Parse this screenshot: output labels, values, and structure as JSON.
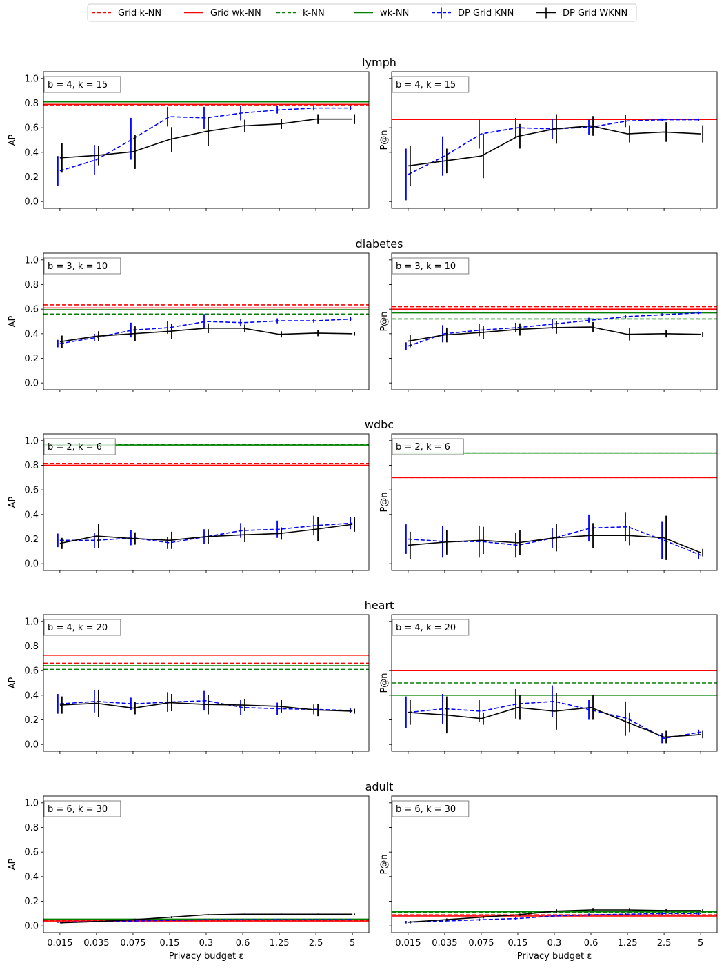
{
  "chart_data": {
    "type": "line",
    "xlabel": "Privacy budget ε",
    "x_categories": [
      "0.015",
      "0.035",
      "0.075",
      "0.15",
      "0.3",
      "0.6",
      "1.25",
      "2.5",
      "5"
    ],
    "y_ticks": [
      "0.0",
      "0.2",
      "0.4",
      "0.6",
      "0.8",
      "1.0"
    ],
    "ylim": [
      0,
      1
    ],
    "colors": {
      "red": "#ff0000",
      "green": "#008000",
      "blue": "#0000ff",
      "black": "#000000",
      "legend_border": "#cccccc",
      "box_border": "#808080"
    },
    "legend": [
      {
        "label": "Grid k-NN",
        "color": "#ff0000",
        "style": "dashed",
        "errbar": false
      },
      {
        "label": "Grid wk-NN",
        "color": "#ff0000",
        "style": "solid",
        "errbar": false
      },
      {
        "label": "k-NN",
        "color": "#008000",
        "style": "dashed",
        "errbar": false
      },
      {
        "label": "wk-NN",
        "color": "#008000",
        "style": "solid",
        "errbar": false
      },
      {
        "label": "DP Grid KNN",
        "color": "#0000ff",
        "style": "dashed",
        "errbar": true
      },
      {
        "label": "DP Grid WKNN",
        "color": "#000000",
        "style": "solid",
        "errbar": true
      }
    ],
    "rows": [
      {
        "title": "lymph",
        "annotation": "b = 4, k = 15",
        "panels": [
          {
            "ylabel": "AP",
            "hlines": {
              "grid_knn": 0.78,
              "grid_wknn": 0.79,
              "knn": 0.79,
              "wknn": 0.81
            },
            "dp_knn": {
              "values": [
                0.25,
                0.34,
                0.51,
                0.69,
                0.68,
                0.72,
                0.745,
                0.76,
                0.76
              ],
              "errors": [
                0.12,
                0.12,
                0.17,
                0.08,
                0.09,
                0.06,
                0.03,
                0.02,
                0.015
              ]
            },
            "dp_wknn": {
              "values": [
                0.355,
                0.375,
                0.405,
                0.505,
                0.57,
                0.615,
                0.63,
                0.67,
                0.67
              ],
              "errors": [
                0.12,
                0.08,
                0.14,
                0.1,
                0.12,
                0.05,
                0.04,
                0.04,
                0.04
              ]
            }
          },
          {
            "ylabel": "P@n",
            "hlines": {
              "grid_knn": 0.667,
              "grid_wknn": 0.667,
              "knn": 0.667,
              "wknn": 0.667
            },
            "dp_knn": {
              "values": [
                0.22,
                0.37,
                0.55,
                0.6,
                0.59,
                0.605,
                0.655,
                0.665,
                0.665
              ],
              "errors": [
                0.21,
                0.16,
                0.12,
                0.08,
                0.08,
                0.06,
                0.05,
                0.01,
                0.01
              ]
            },
            "dp_wknn": {
              "values": [
                0.29,
                0.33,
                0.37,
                0.53,
                0.59,
                0.615,
                0.55,
                0.565,
                0.55
              ],
              "errors": [
                0.16,
                0.1,
                0.18,
                0.1,
                0.12,
                0.08,
                0.07,
                0.08,
                0.07
              ]
            }
          }
        ]
      },
      {
        "title": "diabetes",
        "annotation": "b = 3, k = 10",
        "panels": [
          {
            "ylabel": "AP",
            "hlines": {
              "grid_knn": 0.635,
              "grid_wknn": 0.61,
              "knn": 0.56,
              "wknn": 0.595
            },
            "dp_knn": {
              "values": [
                0.32,
                0.37,
                0.43,
                0.45,
                0.5,
                0.49,
                0.505,
                0.505,
                0.52
              ],
              "errors": [
                0.03,
                0.03,
                0.06,
                0.05,
                0.06,
                0.03,
                0.02,
                0.015,
                0.02
              ]
            },
            "dp_wknn": {
              "values": [
                0.335,
                0.38,
                0.4,
                0.42,
                0.445,
                0.445,
                0.395,
                0.405,
                0.4
              ],
              "errors": [
                0.05,
                0.04,
                0.06,
                0.06,
                0.04,
                0.03,
                0.025,
                0.025,
                0.015
              ]
            }
          },
          {
            "ylabel": "P@n",
            "hlines": {
              "grid_knn": 0.62,
              "grid_wknn": 0.6,
              "knn": 0.52,
              "wknn": 0.57
            },
            "dp_knn": {
              "values": [
                0.3,
                0.4,
                0.43,
                0.45,
                0.48,
                0.51,
                0.54,
                0.555,
                0.57
              ],
              "errors": [
                0.03,
                0.07,
                0.05,
                0.04,
                0.04,
                0.02,
                0.015,
                0.01,
                0.01
              ]
            },
            "dp_wknn": {
              "values": [
                0.34,
                0.39,
                0.41,
                0.435,
                0.45,
                0.455,
                0.395,
                0.4,
                0.395
              ],
              "errors": [
                0.05,
                0.06,
                0.05,
                0.05,
                0.05,
                0.04,
                0.05,
                0.03,
                0.02
              ]
            }
          }
        ]
      },
      {
        "title": "wdbc",
        "annotation": "b = 2, k = 6",
        "panels": [
          {
            "ylabel": "AP",
            "hlines": {
              "grid_knn": 0.815,
              "grid_wknn": 0.8,
              "knn": 0.97,
              "wknn": 0.965
            },
            "dp_knn": {
              "values": [
                0.19,
                0.19,
                0.21,
                0.17,
                0.22,
                0.27,
                0.28,
                0.31,
                0.33
              ],
              "errors": [
                0.055,
                0.06,
                0.06,
                0.05,
                0.06,
                0.06,
                0.07,
                0.08,
                0.05
              ]
            },
            "dp_wknn": {
              "values": [
                0.165,
                0.225,
                0.205,
                0.19,
                0.22,
                0.235,
                0.245,
                0.28,
                0.32
              ],
              "errors": [
                0.045,
                0.1,
                0.05,
                0.07,
                0.06,
                0.06,
                0.05,
                0.1,
                0.06
              ]
            }
          },
          {
            "ylabel": "P@n",
            "hlines": {
              "grid_knn": 0.7,
              "grid_wknn": 0.7,
              "knn": 0.9,
              "wknn": 0.9
            },
            "dp_knn": {
              "values": [
                0.2,
                0.18,
                0.18,
                0.15,
                0.21,
                0.29,
                0.3,
                0.19,
                0.07
              ],
              "errors": [
                0.12,
                0.13,
                0.13,
                0.1,
                0.08,
                0.11,
                0.12,
                0.15,
                0.03
              ]
            },
            "dp_wknn": {
              "values": [
                0.15,
                0.175,
                0.19,
                0.17,
                0.21,
                0.23,
                0.23,
                0.21,
                0.09
              ],
              "errors": [
                0.11,
                0.1,
                0.11,
                0.1,
                0.11,
                0.1,
                0.08,
                0.18,
                0.03
              ]
            }
          }
        ]
      },
      {
        "title": "heart",
        "annotation": "b = 4, k = 20",
        "panels": [
          {
            "ylabel": "AP",
            "hlines": {
              "grid_knn": 0.66,
              "grid_wknn": 0.725,
              "knn": 0.61,
              "wknn": 0.64
            },
            "dp_knn": {
              "values": [
                0.33,
                0.35,
                0.33,
                0.345,
                0.355,
                0.3,
                0.29,
                0.285,
                0.275
              ],
              "errors": [
                0.08,
                0.09,
                0.05,
                0.08,
                0.08,
                0.06,
                0.05,
                0.04,
                0.02
              ]
            },
            "dp_wknn": {
              "values": [
                0.32,
                0.335,
                0.295,
                0.34,
                0.325,
                0.32,
                0.31,
                0.28,
                0.27
              ],
              "errors": [
                0.07,
                0.11,
                0.05,
                0.07,
                0.08,
                0.05,
                0.05,
                0.05,
                0.02
              ]
            }
          },
          {
            "ylabel": "P@n",
            "hlines": {
              "grid_knn": 0.6,
              "grid_wknn": 0.6,
              "knn": 0.5,
              "wknn": 0.4
            },
            "dp_knn": {
              "values": [
                0.26,
                0.29,
                0.27,
                0.33,
                0.35,
                0.28,
                0.21,
                0.05,
                0.1
              ],
              "errors": [
                0.13,
                0.12,
                0.09,
                0.12,
                0.13,
                0.08,
                0.14,
                0.04,
                0.02
              ]
            },
            "dp_wknn": {
              "values": [
                0.26,
                0.24,
                0.21,
                0.3,
                0.27,
                0.3,
                0.18,
                0.06,
                0.08
              ],
              "errors": [
                0.1,
                0.15,
                0.05,
                0.1,
                0.15,
                0.1,
                0.08,
                0.05,
                0.03
              ]
            }
          }
        ]
      },
      {
        "title": "adult",
        "annotation": "b = 6, k = 30",
        "panels": [
          {
            "ylabel": "AP",
            "hlines": {
              "grid_knn": 0.045,
              "grid_wknn": 0.04,
              "knn": 0.05,
              "wknn": 0.055
            },
            "dp_knn": {
              "values": [
                0.03,
                0.035,
                0.04,
                0.045,
                0.05,
                0.05,
                0.05,
                0.05,
                0.05
              ],
              "errors": [
                0.005,
                0.005,
                0.005,
                0.005,
                0.005,
                0.005,
                0.005,
                0.005,
                0.005
              ]
            },
            "dp_wknn": {
              "values": [
                0.025,
                0.035,
                0.05,
                0.07,
                0.09,
                0.095,
                0.095,
                0.095,
                0.095
              ],
              "errors": [
                0.005,
                0.005,
                0.008,
                0.008,
                0.005,
                0.005,
                0.005,
                0.005,
                0.005
              ]
            }
          },
          {
            "ylabel": "P@n",
            "hlines": {
              "grid_knn": 0.09,
              "grid_wknn": 0.08,
              "knn": 0.11,
              "wknn": 0.115
            },
            "dp_knn": {
              "values": [
                0.03,
                0.04,
                0.05,
                0.06,
                0.08,
                0.09,
                0.095,
                0.1,
                0.1
              ],
              "errors": [
                0.01,
                0.01,
                0.01,
                0.01,
                0.01,
                0.01,
                0.01,
                0.01,
                0.01
              ]
            },
            "dp_wknn": {
              "values": [
                0.03,
                0.05,
                0.07,
                0.09,
                0.12,
                0.13,
                0.13,
                0.125,
                0.125
              ],
              "errors": [
                0.01,
                0.01,
                0.01,
                0.01,
                0.015,
                0.01,
                0.01,
                0.01,
                0.01
              ]
            }
          }
        ]
      }
    ]
  }
}
